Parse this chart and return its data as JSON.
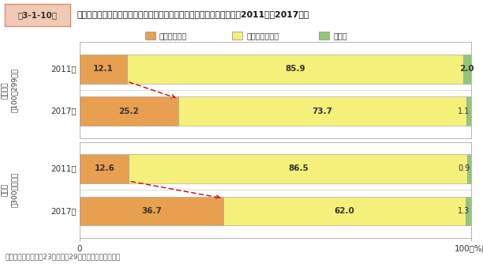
{
  "title_box": "第3-1-10図",
  "title": "従業員規模別に見た、ソーシャルメディアサービスの活用状況の推移（2011年－2017年）",
  "legend_labels": [
    "活用している",
    "活用していない",
    "無回答"
  ],
  "colors": [
    "#E8A050",
    "#F5F07A",
    "#90C878"
  ],
  "source": "資料：総務省「平成23年、平成29年通信利用動向調査」",
  "groups": [
    {
      "label": "中小企業\n（100～299人）",
      "bars": [
        {
          "year": "2011年",
          "values": [
            12.1,
            85.9,
            2.0
          ]
        },
        {
          "year": "2017年",
          "values": [
            25.2,
            73.7,
            1.1
          ]
        }
      ],
      "arrow_from": [
        12.1,
        25.2
      ]
    },
    {
      "label": "大企業\n（300人以上）",
      "bars": [
        {
          "year": "2011年",
          "values": [
            12.6,
            86.5,
            0.9
          ]
        },
        {
          "year": "2017年",
          "values": [
            36.7,
            62.0,
            1.3
          ]
        }
      ],
      "arrow_from": [
        12.6,
        36.7
      ]
    }
  ],
  "title_box_color": "#F2C9B5",
  "title_box_border": "#D4926E",
  "background_color": "#FFFFFF",
  "arrow_color": "#CC0000",
  "border_color": "#AAAAAA",
  "fig_width": 6.12,
  "fig_height": 3.34
}
